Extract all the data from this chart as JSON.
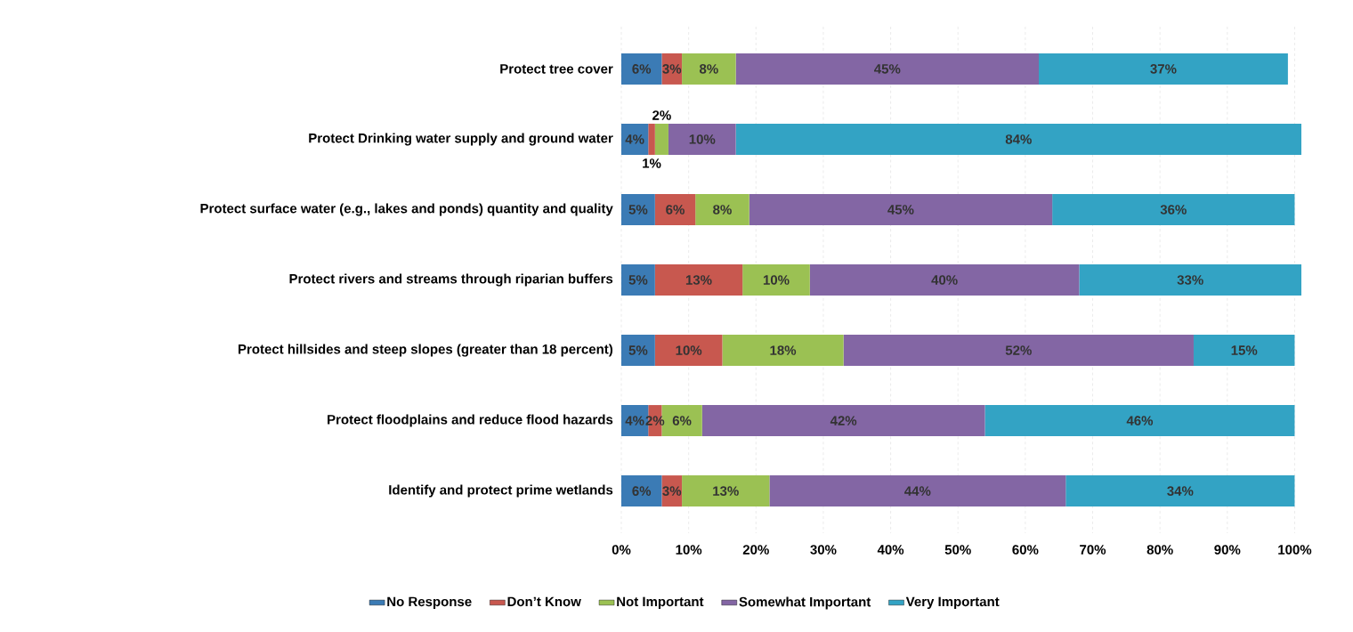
{
  "chart_data": {
    "type": "bar",
    "orientation": "horizontal",
    "stacked": true,
    "categories": [
      "Protect tree cover",
      "Protect Drinking water supply and ground water",
      "Protect surface water (e.g., lakes and ponds) quantity and quality",
      "Protect rivers and streams through riparian buffers",
      "Protect hillsides and steep slopes (greater than 18 percent)",
      "Protect floodplains and reduce flood hazards",
      "Identify and protect prime wetlands"
    ],
    "series": [
      {
        "name": "No Response",
        "color": "#3b7bb5",
        "values": [
          6,
          4,
          5,
          5,
          5,
          4,
          6
        ],
        "value_labels": [
          "6%",
          "4%",
          "5%",
          "5%",
          "5%",
          "4%",
          "6%"
        ]
      },
      {
        "name": "Don’t Know",
        "color": "#c8584f",
        "values": [
          3,
          1,
          6,
          13,
          10,
          2,
          3
        ],
        "value_labels": [
          "3%",
          "1%",
          "6%",
          "13%",
          "10%",
          "2%",
          "3%"
        ]
      },
      {
        "name": "Not Important",
        "color": "#9bc153",
        "values": [
          8,
          2,
          8,
          10,
          18,
          6,
          13
        ],
        "value_labels": [
          "8%",
          "2%",
          "8%",
          "10%",
          "18%",
          "6%",
          "13%"
        ]
      },
      {
        "name": "Somewhat Important",
        "color": "#8366a4",
        "values": [
          45,
          10,
          45,
          40,
          52,
          42,
          44
        ],
        "value_labels": [
          "45%",
          "10%",
          "45%",
          "40%",
          "52%",
          "42%",
          "44%"
        ]
      },
      {
        "name": "Very Important",
        "color": "#33a3c4",
        "values": [
          37,
          84,
          36,
          33,
          15,
          46,
          34
        ],
        "value_labels": [
          "37%",
          "84%",
          "36%",
          "33%",
          "15%",
          "46%",
          "34%"
        ]
      }
    ],
    "xlim": [
      0,
      101
    ],
    "xticks": [
      {
        "value": 0,
        "label": "0%"
      },
      {
        "value": 10,
        "label": "10%"
      },
      {
        "value": 20,
        "label": "20%"
      },
      {
        "value": 30,
        "label": "30%"
      },
      {
        "value": 40,
        "label": "40%"
      },
      {
        "value": 50,
        "label": "50%"
      },
      {
        "value": 60,
        "label": "60%"
      },
      {
        "value": 70,
        "label": "70%"
      },
      {
        "value": 80,
        "label": "80%"
      },
      {
        "value": 90,
        "label": "90%"
      },
      {
        "value": 100,
        "label": "100%"
      }
    ],
    "grid": "x",
    "legend": "bottom"
  }
}
